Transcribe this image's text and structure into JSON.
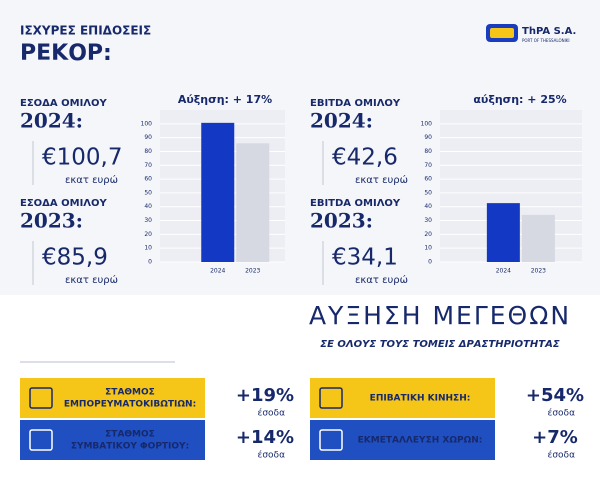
{
  "header": {
    "title": "ΙΣΧΥΡΕΣ ΕΠΙΔΟΣΕΙΣ",
    "subtitle": "ΡΕΚΟΡ:"
  },
  "logo": {
    "name": "ThPA S.A.",
    "tagline": "PORT OF THESSALONIKI"
  },
  "kpis": [
    {
      "label": "ΕΣΟΔΑ ΟΜΙΛΟΥ",
      "year": "2024:",
      "value": "€100,7",
      "unit": "εκατ ευρώ"
    },
    {
      "label": "ΕΣΟΔΑ ΟΜΙΛΟΥ",
      "year": "2023:",
      "value": "€85,9",
      "unit": "εκατ ευρώ"
    },
    {
      "label": "EBITDA ΟΜΙΛΟΥ",
      "year": "2024:",
      "value": "€42,6",
      "unit": "εκατ ευρώ"
    },
    {
      "label": "EBITDA ΟΜΙΛΟΥ",
      "year": "2023:",
      "value": "€34,1",
      "unit": "εκατ ευρώ"
    }
  ],
  "chart_data": [
    {
      "type": "bar",
      "title": "Αύξηση: + 17%",
      "categories": [
        "2024",
        "2023"
      ],
      "values": [
        100.7,
        85.9
      ],
      "colors": [
        "#1238c4",
        "#d6d8e2"
      ],
      "ylim": [
        0,
        110
      ],
      "yticks": [
        0,
        10,
        20,
        30,
        40,
        50,
        60,
        70,
        80,
        90,
        100
      ],
      "grid": true
    },
    {
      "type": "bar",
      "title": "αύξηση: + 25%",
      "categories": [
        "2024",
        "2023"
      ],
      "values": [
        42.6,
        34.1
      ],
      "colors": [
        "#1238c4",
        "#d6d8e2"
      ],
      "ylim": [
        0,
        110
      ],
      "yticks": [
        0,
        10,
        20,
        30,
        40,
        50,
        60,
        70,
        80,
        90,
        100
      ],
      "grid": true
    }
  ],
  "section": {
    "title": "ΑΥΞΗΣΗ ΜΕΓΕΘΩΝ",
    "subtitle": "ΣΕ ΟΛΟΥΣ ΤΟΥΣ ΤΟΜΕΙΣ ΔΡΑΣΤΗΡΙΟΤΗΤΑΣ"
  },
  "segments": [
    {
      "label": [
        "ΣΤΑΘΜΟΣ",
        "ΕΜΠΟΡΕΥΜΑΤΟΚΙΒΩΤΙΩΝ:"
      ],
      "change": "+19%",
      "note": "έσοδα"
    },
    {
      "label": [
        "ΣΤΑΘΜΟΣ",
        "ΣΥΜΒΑΤΙΚΟΥ ΦΟΡΤΙΟΥ:"
      ],
      "change": "+14%",
      "note": "έσοδα"
    },
    {
      "label": [
        "ΕΠΙΒΑΤΙΚΗ ΚΙΝΗΣΗ:"
      ],
      "change": "+54%",
      "note": "έσοδα"
    },
    {
      "label": [
        "ΕΚΜΕΤΑΛΛΕΥΣΗ ΧΩΡΩΝ:"
      ],
      "change": "+7%",
      "note": "έσοδα"
    }
  ]
}
